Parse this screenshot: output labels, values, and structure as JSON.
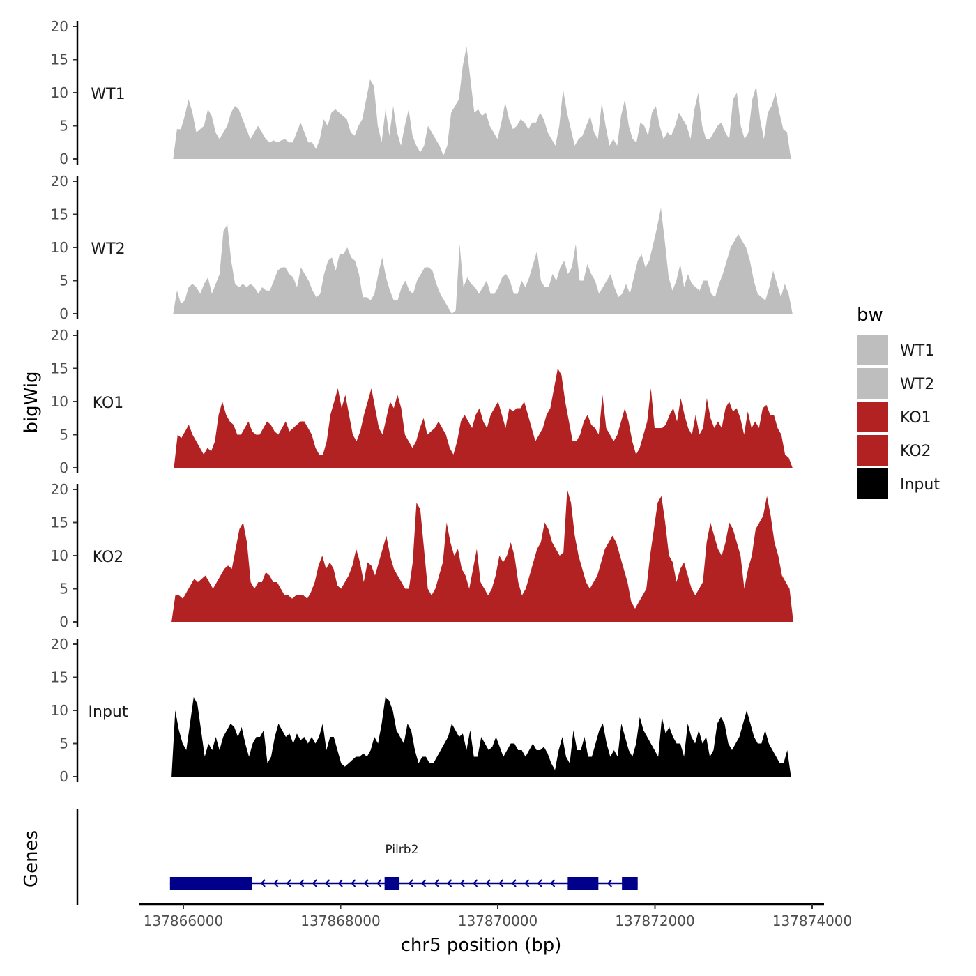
{
  "chart_data": {
    "type": "area",
    "ylabel": "bigWig",
    "xlabel": "chr5 position (bp)",
    "genes_label": "Genes",
    "ylim": [
      0,
      20
    ],
    "y_ticks": [
      "0",
      "5",
      "10",
      "15",
      "20"
    ],
    "xlim": [
      137865800,
      137873800
    ],
    "x_ticks": [
      {
        "value": 137866000,
        "label": "137866000"
      },
      {
        "value": 137868000,
        "label": "137868000"
      },
      {
        "value": 137870000,
        "label": "137870000"
      },
      {
        "value": 137872000,
        "label": "137872000"
      },
      {
        "value": 137874000,
        "label": "137874000"
      }
    ],
    "legend": {
      "title": "bw",
      "entries": [
        {
          "label": "WT1",
          "color": "#bebebe"
        },
        {
          "label": "WT2",
          "color": "#bebebe"
        },
        {
          "label": "KO1",
          "color": "#b22222"
        },
        {
          "label": "KO2",
          "color": "#b22222"
        },
        {
          "label": "Input",
          "color": "#000000"
        }
      ]
    },
    "series": [
      {
        "name": "WT1",
        "color": "#bebebe",
        "x_start": 137865870,
        "x_end": 137873730,
        "values": [
          0,
          4.5,
          4.5,
          6.5,
          9,
          7,
          4,
          4.5,
          5,
          7.5,
          6.5,
          4,
          3,
          4,
          5,
          7,
          8,
          7.5,
          6,
          4.5,
          3,
          4,
          5,
          4,
          3,
          2.5,
          2.8,
          2.5,
          2.8,
          3,
          2.5,
          2.5,
          4,
          5.5,
          4,
          2.5,
          2.5,
          1.5,
          3,
          6,
          5,
          7,
          7.5,
          7,
          6.5,
          6,
          4,
          3.5,
          5,
          6,
          9,
          12,
          11,
          5,
          2.5,
          7.5,
          3.5,
          8,
          4,
          2,
          5,
          7.5,
          3.5,
          2,
          1,
          2,
          5,
          4,
          3,
          2,
          0.5,
          2,
          7,
          8,
          9,
          14,
          17,
          12,
          7,
          7.5,
          6.5,
          7,
          5,
          4,
          3,
          5.5,
          8.5,
          6,
          4.5,
          5,
          6,
          5.5,
          4.5,
          5.5,
          5.5,
          7,
          6,
          4,
          3,
          2,
          5,
          10.5,
          7,
          4.5,
          2,
          3,
          3.5,
          5,
          6.5,
          4,
          3,
          8.5,
          5,
          2,
          3,
          2,
          6.5,
          9,
          5,
          3,
          2.5,
          5.5,
          5,
          3.5,
          7,
          8,
          5,
          3,
          4,
          3.5,
          5,
          7,
          6,
          5,
          3,
          7.5,
          10,
          5,
          3,
          3,
          4,
          5,
          5.5,
          4,
          3,
          9,
          10,
          5,
          3,
          4,
          9,
          11,
          6,
          3,
          7,
          8,
          10,
          7,
          4.5,
          4,
          0
        ],
        "tail": 0
      },
      {
        "name": "WT2",
        "color": "#bebebe",
        "x_start": 137865870,
        "x_end": 137873750,
        "values": [
          0,
          3.5,
          1.5,
          2,
          4,
          4.5,
          4,
          3,
          4.5,
          5.5,
          3,
          4.5,
          6,
          12.5,
          13.5,
          8,
          4.5,
          4,
          4.5,
          4,
          4.5,
          4,
          3,
          4,
          3.5,
          3.5,
          5,
          6.5,
          7,
          7,
          6,
          5.5,
          4,
          7,
          6,
          5,
          3.5,
          2.5,
          3,
          6,
          8,
          8.5,
          6.5,
          9,
          9,
          10,
          8.5,
          8,
          6,
          2.5,
          2.5,
          2,
          3,
          6,
          8.5,
          5.5,
          3.5,
          2,
          2,
          4,
          5,
          3.5,
          3,
          5,
          6,
          7,
          7,
          6.5,
          4.5,
          3,
          2,
          1,
          0,
          0.5,
          10.5,
          4,
          5.5,
          4.5,
          4,
          3,
          4,
          5,
          3,
          3,
          4,
          5.5,
          6,
          5,
          3,
          3,
          5,
          4,
          5.5,
          7.5,
          9.5,
          5,
          4,
          4,
          6,
          5,
          7,
          8,
          6,
          7,
          10.5,
          5,
          5,
          7.5,
          6,
          5,
          3,
          4,
          5,
          6,
          4,
          2.5,
          3,
          4.5,
          3,
          5.5,
          8,
          9,
          7,
          8,
          10.5,
          13,
          16,
          11,
          5.5,
          3.5,
          5,
          7.5,
          4,
          6,
          4.5,
          4,
          3.5,
          5,
          5,
          3,
          2.5,
          4.5,
          6,
          8,
          10,
          11,
          12,
          11,
          10,
          8,
          5,
          3,
          2.5,
          2,
          4,
          6.5,
          4.5,
          2.5,
          4.5,
          3,
          0
        ],
        "tail": 0
      },
      {
        "name": "KO1",
        "color": "#b22222",
        "x_start": 137865880,
        "x_end": 137873750,
        "values": [
          0,
          5,
          4.5,
          5.5,
          6.5,
          5,
          4,
          3,
          2,
          3,
          2.5,
          4,
          8,
          10,
          8,
          7,
          6.5,
          5,
          5,
          6,
          7,
          5.5,
          5,
          5,
          6,
          7,
          6.5,
          5.5,
          5,
          6,
          7,
          5.5,
          6,
          6.5,
          7,
          7,
          6,
          5,
          3,
          2,
          2,
          4,
          8,
          10,
          12,
          9,
          11,
          8,
          5,
          4,
          5.5,
          8,
          10,
          12,
          9,
          6,
          5,
          7.5,
          10,
          9,
          11,
          9,
          5,
          4,
          3,
          4,
          6,
          7.5,
          5,
          5.5,
          6,
          7,
          6,
          5,
          3,
          2,
          4,
          7,
          8,
          7,
          6,
          8,
          9,
          7,
          6,
          8,
          9,
          10,
          8,
          6,
          9,
          8.5,
          9,
          9,
          10,
          8,
          6,
          4,
          5,
          6,
          8,
          9,
          12,
          15,
          14,
          10,
          7,
          4,
          4,
          5,
          7,
          8,
          6.5,
          6,
          5,
          11,
          6,
          5,
          4,
          5,
          7,
          9,
          7,
          4,
          2,
          3,
          5,
          7,
          12,
          6,
          6,
          6,
          6.5,
          8,
          9,
          7,
          10.5,
          8,
          6,
          5,
          8,
          5,
          6,
          10.5,
          7.5,
          6,
          7,
          6,
          9,
          10,
          8.5,
          9,
          7.5,
          5,
          8.5,
          6,
          7,
          6,
          9,
          9.5,
          8,
          8,
          6,
          5,
          2,
          1.5,
          0
        ],
        "tail": 1.5
      },
      {
        "name": "KO2",
        "color": "#b22222",
        "x_start": 137865850,
        "x_end": 137873760,
        "values": [
          0,
          4,
          4,
          3.5,
          4.5,
          5.5,
          6.5,
          6,
          6.5,
          7,
          6,
          5,
          6,
          7,
          8,
          8.5,
          8,
          11,
          14,
          15,
          12,
          6,
          5,
          6,
          6,
          7.5,
          7,
          6,
          6,
          5,
          4,
          4,
          3.5,
          4,
          4,
          4,
          3.5,
          4.5,
          6,
          8.5,
          10,
          8,
          9,
          8,
          5.5,
          5,
          6,
          7,
          8.5,
          11,
          9,
          6,
          9,
          8.5,
          7,
          9,
          11,
          13,
          10,
          8,
          7,
          6,
          5,
          5,
          9,
          18,
          17,
          11,
          5,
          4,
          5,
          7,
          9,
          15,
          12,
          10,
          11,
          8,
          7,
          5,
          8,
          11,
          6,
          5,
          4,
          5,
          7,
          10,
          9,
          10,
          12,
          10,
          6,
          4,
          5,
          7,
          9,
          11,
          12,
          15,
          14,
          12,
          11,
          10,
          10.5,
          20,
          18,
          13,
          10,
          8,
          6,
          5,
          6,
          7,
          9,
          11,
          12,
          13,
          12,
          10,
          8,
          6,
          3,
          2,
          3,
          4,
          5,
          10,
          14,
          18,
          19,
          15,
          10,
          9,
          6,
          8,
          9,
          7,
          5,
          4,
          5,
          6,
          12,
          15,
          13,
          11,
          10,
          12,
          15,
          14,
          12,
          10,
          5,
          8,
          10,
          14,
          15,
          16,
          19,
          16,
          12,
          10,
          7,
          6,
          5,
          0
        ],
        "tail": 6
      },
      {
        "name": "Input",
        "color": "#000000",
        "x_start": 137865850,
        "x_end": 137873730,
        "values": [
          0,
          10,
          7,
          5,
          4,
          8,
          12,
          11,
          7,
          3,
          5,
          4,
          6,
          4,
          6,
          7,
          8,
          7.5,
          6,
          7.5,
          5,
          3,
          5,
          6,
          6,
          7,
          2,
          3,
          6,
          8,
          7,
          6,
          6.5,
          5,
          6.5,
          5.5,
          6,
          5,
          6,
          5,
          6,
          8,
          4,
          6,
          6,
          4,
          2,
          1.5,
          2,
          2.5,
          3,
          3,
          3.5,
          3,
          4,
          6,
          5,
          8,
          12,
          11.5,
          10,
          7,
          6,
          5,
          8,
          7,
          4,
          2,
          3,
          3,
          2,
          2,
          3,
          4,
          5,
          6,
          8,
          7,
          6,
          6.5,
          4,
          7,
          3,
          3,
          6,
          5,
          4,
          4.5,
          6,
          4.5,
          3,
          4,
          5,
          5,
          4,
          4,
          3,
          4,
          5,
          4,
          4,
          4.5,
          3.5,
          2,
          1,
          4,
          6,
          3,
          2,
          7,
          4,
          4,
          6,
          3,
          3,
          5,
          7,
          8,
          5,
          3,
          4,
          3,
          8,
          6,
          4,
          3,
          5,
          9,
          7,
          6,
          5,
          4,
          3,
          9,
          6.5,
          7.5,
          6,
          5,
          5,
          3,
          8,
          6,
          5,
          7,
          5,
          6,
          3,
          4,
          8,
          9,
          8,
          5,
          4,
          5,
          6,
          8,
          10,
          8,
          6,
          5,
          5,
          7,
          5,
          4,
          3,
          2,
          2,
          4,
          0
        ],
        "tail": 0
      }
    ],
    "genes": [
      {
        "name": "Pilrb2",
        "color": "#00008b",
        "strand": "-",
        "start": 137865830,
        "end": 137871780,
        "exons": [
          [
            137865830,
            137866870
          ],
          [
            137868560,
            137868750
          ],
          [
            137870890,
            137871280
          ],
          [
            137871580,
            137871780
          ]
        ]
      }
    ]
  }
}
